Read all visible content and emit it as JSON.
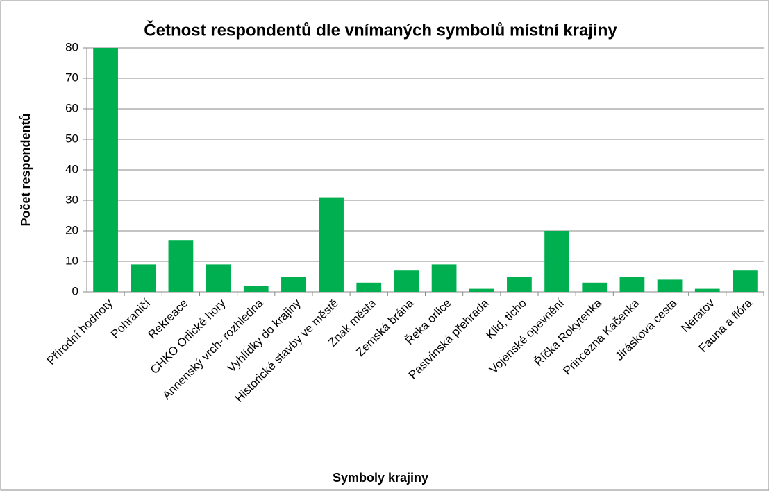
{
  "chart_data": {
    "type": "bar",
    "title": "Četnost respondentů dle vnímaných symbolů místní krajiny",
    "x_label": "Symboly krajiny",
    "y_label": "Počet respondentů",
    "categories": [
      "Přírodní hodnoty",
      "Pohraničí",
      "Rekreace",
      "CHKO Orlické hory",
      "Annenský vrch- rozhledna",
      "Vyhlídky do krajiny",
      "Historické stavby ve městě",
      "Znak města",
      "Zemská brána",
      "Řeka orlice",
      "Pastvinská přehrada",
      "Klid, ticho",
      "Vojenské opevnění",
      "Říčka Rokytenka",
      "Princezna Kačenka",
      "Jiráskova cesta",
      "Neratov",
      "Fauna a flóra"
    ],
    "values": [
      80,
      9,
      17,
      9,
      2,
      5,
      31,
      3,
      7,
      9,
      1,
      5,
      20,
      3,
      5,
      4,
      1,
      7
    ],
    "color": "#00b050",
    "ylim": [
      0,
      80
    ],
    "yticks": [
      0,
      10,
      20,
      30,
      40,
      50,
      60,
      70,
      80
    ],
    "grid": true
  }
}
